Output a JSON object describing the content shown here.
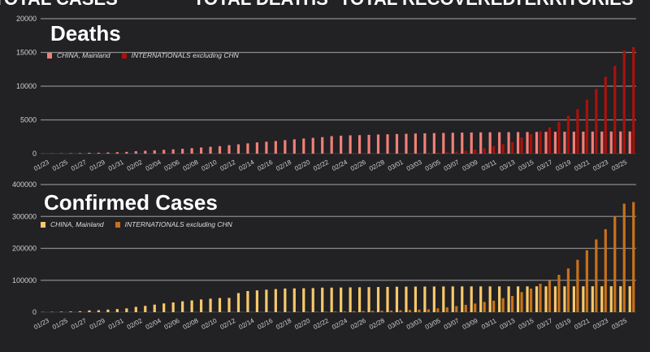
{
  "header": {
    "tabs": [
      "TOTAL CASES",
      "TOTAL DEATHS",
      "TOTAL RECOVERED",
      "TERRITORIES"
    ]
  },
  "chart_data": [
    {
      "type": "bar",
      "title": "Deaths",
      "legend_placement": "top-left",
      "grid": true,
      "ylim": [
        0,
        20000
      ],
      "yticks": [
        "20000",
        "15000",
        "10000",
        "5000",
        "0"
      ],
      "categories": [
        "01/23",
        "01/24",
        "01/25",
        "01/26",
        "01/27",
        "01/28",
        "01/29",
        "01/30",
        "01/31",
        "02/01",
        "02/02",
        "02/03",
        "02/04",
        "02/05",
        "02/06",
        "02/07",
        "02/08",
        "02/09",
        "02/10",
        "02/11",
        "02/12",
        "02/13",
        "02/14",
        "02/15",
        "02/16",
        "02/17",
        "02/18",
        "02/19",
        "02/20",
        "02/21",
        "02/22",
        "02/23",
        "02/24",
        "02/25",
        "02/26",
        "02/27",
        "02/28",
        "02/29",
        "03/01",
        "03/02",
        "03/03",
        "03/04",
        "03/05",
        "03/06",
        "03/07",
        "03/08",
        "03/09",
        "03/10",
        "03/11",
        "03/12",
        "03/13",
        "03/14",
        "03/15",
        "03/16",
        "03/17",
        "03/18",
        "03/19",
        "03/20",
        "03/21",
        "03/22",
        "03/23",
        "03/24",
        "03/25",
        "03/26"
      ],
      "series": [
        {
          "name": "CHINA, Mainland",
          "color": "#f08078",
          "values": [
            17,
            25,
            41,
            56,
            80,
            131,
            133,
            171,
            213,
            259,
            361,
            425,
            490,
            562,
            636,
            722,
            811,
            908,
            1016,
            1113,
            1259,
            1380,
            1523,
            1665,
            1770,
            1868,
            2004,
            2118,
            2236,
            2345,
            2442,
            2592,
            2663,
            2715,
            2744,
            2788,
            2835,
            2870,
            2912,
            2943,
            2981,
            3012,
            3042,
            3070,
            3097,
            3119,
            3136,
            3158,
            3169,
            3176,
            3189,
            3199,
            3213,
            3226,
            3237,
            3245,
            3248,
            3255,
            3261,
            3270,
            3277,
            3281,
            3285,
            3291
          ]
        },
        {
          "name": "INTERNATIONALS excluding CHN",
          "color": "#a8120c",
          "values": [
            0,
            0,
            0,
            0,
            0,
            0,
            0,
            0,
            0,
            0,
            1,
            1,
            1,
            1,
            1,
            1,
            1,
            1,
            1,
            1,
            1,
            2,
            3,
            4,
            4,
            5,
            5,
            5,
            6,
            8,
            11,
            17,
            23,
            30,
            37,
            44,
            52,
            40,
            50,
            60,
            80,
            110,
            150,
            200,
            300,
            400,
            600,
            800,
            1100,
            1400,
            1700,
            2400,
            2900,
            3300,
            3900,
            4700,
            5600,
            6600,
            8000,
            9600,
            11400,
            13000,
            15300,
            15800
          ]
        }
      ]
    },
    {
      "type": "bar",
      "title": "Confirmed Cases",
      "legend_placement": "top-left",
      "grid": true,
      "ylim": [
        0,
        400000
      ],
      "yticks": [
        "400000",
        "300000",
        "200000",
        "100000",
        "0"
      ],
      "categories": [
        "01/23",
        "01/24",
        "01/25",
        "01/26",
        "01/27",
        "01/28",
        "01/29",
        "01/30",
        "01/31",
        "02/01",
        "02/02",
        "02/03",
        "02/04",
        "02/05",
        "02/06",
        "02/07",
        "02/08",
        "02/09",
        "02/10",
        "02/11",
        "02/12",
        "02/13",
        "02/14",
        "02/15",
        "02/16",
        "02/17",
        "02/18",
        "02/19",
        "02/20",
        "02/21",
        "02/22",
        "02/23",
        "02/24",
        "02/25",
        "02/26",
        "02/27",
        "02/28",
        "02/29",
        "03/01",
        "03/02",
        "03/03",
        "03/04",
        "03/05",
        "03/06",
        "03/07",
        "03/08",
        "03/09",
        "03/10",
        "03/11",
        "03/12",
        "03/13",
        "03/14",
        "03/15",
        "03/16",
        "03/17",
        "03/18",
        "03/19",
        "03/20",
        "03/21",
        "03/22",
        "03/23",
        "03/24",
        "03/25",
        "03/26"
      ],
      "series": [
        {
          "name": "CHINA, Mainland",
          "color": "#f7c96a",
          "values": [
            639,
            916,
            1399,
            2062,
            2863,
            5494,
            6070,
            8124,
            9783,
            11871,
            16607,
            19693,
            23680,
            27409,
            30553,
            34075,
            36778,
            39790,
            42306,
            44327,
            44699,
            59832,
            66292,
            68347,
            70446,
            72364,
            74139,
            74546,
            74999,
            75472,
            76922,
            76938,
            77152,
            77660,
            78065,
            78498,
            78824,
            79251,
            79826,
            80026,
            80151,
            80271,
            80422,
            80573,
            80652,
            80699,
            80735,
            80757,
            80793,
            80813,
            80824,
            80844,
            80860,
            80881,
            80894,
            80928,
            80967,
            81008,
            81054,
            81093,
            81171,
            81218,
            81285,
            81340
          ]
        },
        {
          "name": "INTERNATIONALS excluding CHN",
          "color": "#c8711a",
          "values": [
            10,
            20,
            40,
            60,
            80,
            100,
            120,
            150,
            180,
            200,
            250,
            300,
            350,
            400,
            450,
            500,
            550,
            600,
            650,
            700,
            750,
            800,
            850,
            900,
            950,
            1000,
            1100,
            1200,
            1300,
            1400,
            1500,
            2000,
            2500,
            3000,
            3500,
            4000,
            4500,
            5000,
            6000,
            7000,
            8000,
            9000,
            12000,
            15000,
            19000,
            23000,
            27000,
            32000,
            36000,
            44000,
            51000,
            63000,
            74000,
            89000,
            100000,
            117000,
            137000,
            164000,
            194000,
            228000,
            260000,
            301000,
            340000,
            345000
          ]
        }
      ]
    }
  ]
}
